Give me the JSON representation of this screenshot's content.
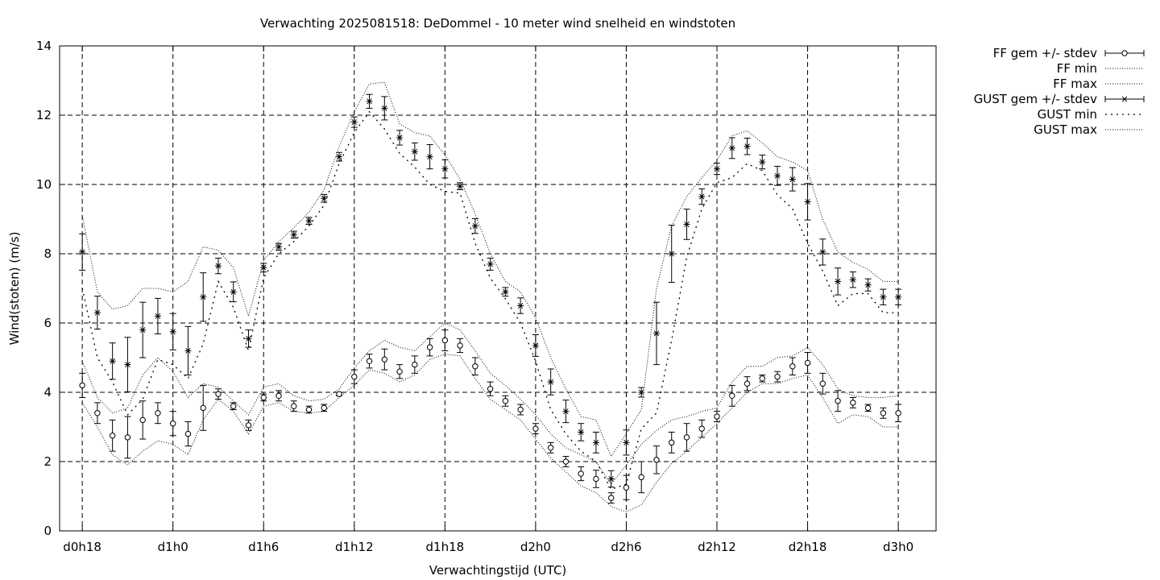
{
  "chart_data": {
    "type": "line",
    "title": "Verwachting 2025081518: DeDommel - 10 meter wind snelheid en windstoten",
    "xlabel": "Verwachtingstijd (UTC)",
    "ylabel": "Wind(stoten) (m/s)",
    "ylim": [
      0,
      14
    ],
    "xlim": [
      -1.5,
      56.5
    ],
    "grid": true,
    "legend_position": "top-right outside",
    "y_ticks": [
      0,
      2,
      4,
      6,
      8,
      10,
      12,
      14
    ],
    "x_ticks": [
      {
        "hour": 0,
        "label": "d0h18"
      },
      {
        "hour": 6,
        "label": "d1h0"
      },
      {
        "hour": 12,
        "label": "d1h6"
      },
      {
        "hour": 18,
        "label": "d1h12"
      },
      {
        "hour": 24,
        "label": "d1h18"
      },
      {
        "hour": 30,
        "label": "d2h0"
      },
      {
        "hour": 36,
        "label": "d2h6"
      },
      {
        "hour": 42,
        "label": "d2h12"
      },
      {
        "hour": 48,
        "label": "d2h18"
      },
      {
        "hour": 54,
        "label": "d3h0"
      }
    ],
    "x_hours": [
      0,
      1,
      2,
      3,
      4,
      5,
      6,
      7,
      8,
      9,
      10,
      11,
      12,
      13,
      14,
      15,
      16,
      17,
      18,
      19,
      20,
      21,
      22,
      23,
      24,
      25,
      26,
      27,
      28,
      29,
      30,
      31,
      32,
      33,
      34,
      35,
      36,
      37,
      38,
      39,
      40,
      41,
      42,
      43,
      44,
      45,
      46,
      47,
      48,
      49,
      50,
      51,
      52,
      53,
      54
    ],
    "series": [
      {
        "name": "FF gem +/- stdev",
        "style": "errorbar-circle",
        "mean": [
          4.2,
          3.4,
          2.75,
          2.7,
          3.2,
          3.4,
          3.1,
          2.8,
          3.55,
          3.95,
          3.6,
          3.05,
          3.85,
          3.9,
          3.6,
          3.5,
          3.55,
          3.95,
          4.45,
          4.9,
          4.95,
          4.6,
          4.8,
          5.3,
          5.5,
          5.35,
          4.75,
          4.1,
          3.75,
          3.5,
          2.95,
          2.4,
          2.0,
          1.65,
          1.5,
          0.95,
          1.25,
          1.55,
          2.05,
          2.55,
          2.7,
          2.95,
          3.3,
          3.9,
          4.25,
          4.4,
          4.45,
          4.75,
          4.85,
          4.25,
          3.75,
          3.7,
          3.55,
          3.4,
          3.4
        ],
        "stdev": [
          0.35,
          0.3,
          0.45,
          0.6,
          0.55,
          0.3,
          0.35,
          0.35,
          0.65,
          0.15,
          0.1,
          0.15,
          0.1,
          0.15,
          0.15,
          0.1,
          0.1,
          0.05,
          0.2,
          0.2,
          0.3,
          0.2,
          0.25,
          0.25,
          0.3,
          0.2,
          0.25,
          0.2,
          0.15,
          0.15,
          0.15,
          0.15,
          0.15,
          0.2,
          0.25,
          0.15,
          0.35,
          0.45,
          0.4,
          0.3,
          0.4,
          0.25,
          0.15,
          0.3,
          0.2,
          0.1,
          0.15,
          0.25,
          0.3,
          0.3,
          0.3,
          0.15,
          0.1,
          0.15,
          0.25
        ]
      },
      {
        "name": "FF min",
        "style": "dotted",
        "values": [
          3.7,
          3.0,
          2.2,
          1.9,
          2.3,
          2.6,
          2.5,
          2.2,
          3.2,
          3.8,
          3.45,
          2.8,
          3.6,
          3.7,
          3.45,
          3.4,
          3.45,
          3.85,
          4.2,
          4.65,
          4.55,
          4.3,
          4.5,
          4.95,
          5.1,
          5.05,
          4.4,
          3.8,
          3.5,
          3.2,
          2.65,
          2.1,
          1.7,
          1.3,
          1.1,
          0.7,
          0.55,
          0.75,
          1.4,
          1.95,
          2.3,
          2.7,
          3.1,
          3.55,
          4.0,
          4.25,
          4.25,
          4.4,
          4.5,
          3.85,
          3.1,
          3.35,
          3.3,
          3.0,
          3.0
        ]
      },
      {
        "name": "FF max",
        "style": "dotted",
        "values": [
          4.9,
          3.85,
          3.4,
          3.55,
          4.5,
          5.0,
          4.6,
          3.85,
          4.25,
          4.15,
          3.75,
          3.35,
          4.15,
          4.25,
          3.9,
          3.75,
          3.8,
          4.1,
          4.7,
          5.2,
          5.5,
          5.3,
          5.2,
          5.6,
          6.0,
          5.8,
          5.2,
          4.55,
          4.2,
          3.8,
          3.35,
          2.8,
          2.4,
          2.2,
          2.0,
          1.35,
          1.9,
          2.5,
          2.9,
          3.2,
          3.3,
          3.45,
          3.55,
          4.3,
          4.75,
          4.75,
          5.0,
          5.05,
          5.3,
          4.8,
          4.1,
          3.9,
          3.85,
          3.85,
          3.9
        ]
      },
      {
        "name": "GUST gem +/- stdev",
        "style": "errorbar-star",
        "mean": [
          8.05,
          6.3,
          4.9,
          4.8,
          5.8,
          6.2,
          5.75,
          5.2,
          6.75,
          7.65,
          6.9,
          5.55,
          7.6,
          8.2,
          8.55,
          8.95,
          9.6,
          10.8,
          11.8,
          12.4,
          12.2,
          11.35,
          10.95,
          10.8,
          10.45,
          9.95,
          8.8,
          7.7,
          6.9,
          6.5,
          5.35,
          4.3,
          3.45,
          2.85,
          2.55,
          1.5,
          2.55,
          4.0,
          5.7,
          8.0,
          8.85,
          9.65,
          10.45,
          11.05,
          11.1,
          10.65,
          10.25,
          10.15,
          9.5,
          8.05,
          7.2,
          7.25,
          7.1,
          6.75,
          6.75
        ]
      },
      {
        "name": "GUST min",
        "style": "dotted-coarse",
        "values": [
          7.0,
          5.0,
          4.3,
          3.35,
          3.8,
          4.95,
          4.8,
          4.4,
          5.4,
          7.2,
          6.45,
          5.2,
          7.3,
          8.0,
          8.35,
          8.8,
          9.4,
          10.6,
          11.5,
          12.1,
          11.6,
          10.9,
          10.5,
          10.0,
          9.8,
          9.75,
          8.3,
          7.3,
          6.7,
          6.0,
          4.9,
          3.5,
          2.8,
          2.3,
          2.0,
          1.2,
          1.35,
          2.95,
          3.4,
          5.5,
          7.9,
          9.3,
          10.05,
          10.2,
          10.6,
          10.4,
          9.7,
          9.3,
          8.3,
          7.5,
          6.5,
          6.85,
          6.85,
          6.3,
          6.3
        ]
      },
      {
        "name": "GUST max",
        "style": "dotted",
        "values": [
          9.1,
          6.9,
          6.4,
          6.5,
          7.0,
          7.0,
          6.9,
          7.2,
          8.2,
          8.1,
          7.6,
          6.2,
          7.8,
          8.35,
          8.75,
          9.2,
          9.85,
          11.1,
          12.1,
          12.9,
          12.95,
          11.75,
          11.5,
          11.4,
          10.85,
          10.15,
          9.15,
          8.0,
          7.2,
          6.9,
          6.15,
          5.0,
          4.1,
          3.3,
          3.2,
          2.15,
          2.8,
          3.5,
          7.0,
          8.8,
          9.65,
          10.2,
          10.7,
          11.4,
          11.55,
          11.2,
          10.8,
          10.65,
          10.4,
          9.0,
          8.05,
          7.75,
          7.55,
          7.2,
          7.2
        ]
      }
    ]
  }
}
